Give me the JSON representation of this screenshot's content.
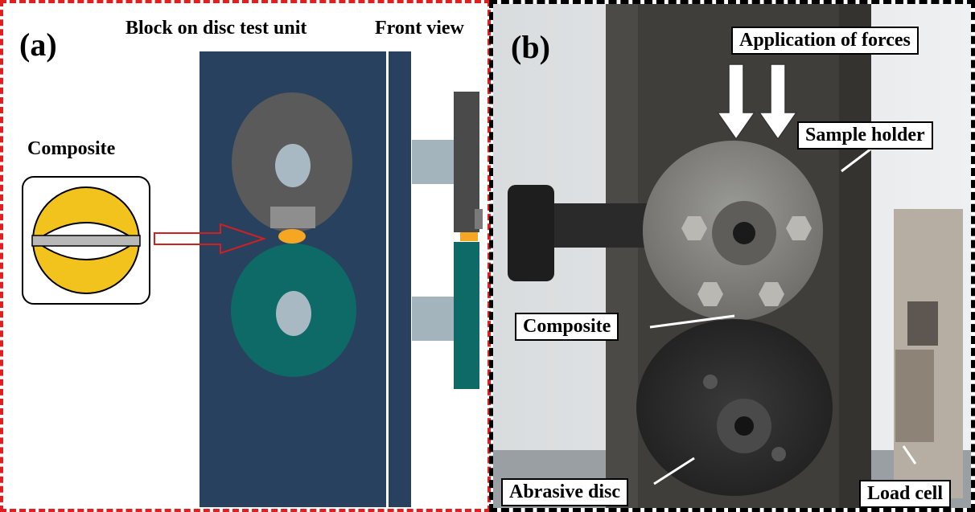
{
  "panel_a": {
    "letter": "(a)",
    "title": "Block on disc test unit",
    "subtitle": "Front view",
    "composite_label": "Composite",
    "colors": {
      "plate": "#27415f",
      "upper_disc": "#5a5a5a",
      "lower_disc": "#0e6a66",
      "hub": "#a9b9c4",
      "composite": "#f2c31d",
      "specimen": "#f5a623",
      "arrow": "#d02020",
      "border": "#e02020"
    }
  },
  "panel_b": {
    "letter": "(b)",
    "labels": {
      "forces": "Application of forces",
      "holder": "Sample holder",
      "composite": "Composite",
      "abrasive": "Abrasive disc",
      "load_cell": "Load cell"
    }
  }
}
